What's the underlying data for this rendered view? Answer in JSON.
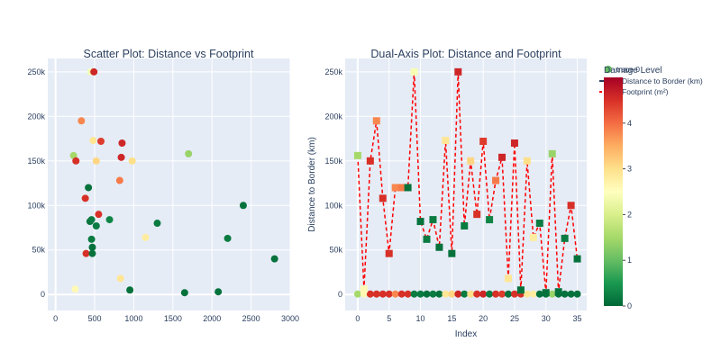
{
  "chart_data": [
    {
      "type": "scatter",
      "title": "Scatter Plot: Distance vs Footprint",
      "xlabel": "",
      "ylabel": "",
      "xlim": [
        -100,
        3000
      ],
      "ylim": [
        -18000,
        265000
      ],
      "x_ticks": [
        "0",
        "500",
        "1000",
        "1500",
        "2000",
        "2500",
        "3000"
      ],
      "y_ticks": [
        "0",
        "50k",
        "100k",
        "150k",
        "200k",
        "250k"
      ],
      "grid": true,
      "series": [
        {
          "points": [
            {
              "x": 230,
              "y": 156000,
              "damage": 1.5
            },
            {
              "x": 250,
              "y": 6000,
              "damage": 2.6
            },
            {
              "x": 260,
              "y": 150000,
              "damage": 4.5
            },
            {
              "x": 330,
              "y": 195000,
              "damage": 3.8
            },
            {
              "x": 380,
              "y": 108000,
              "damage": 4.5
            },
            {
              "x": 390,
              "y": 46000,
              "damage": 4.5
            },
            {
              "x": 420,
              "y": 120000,
              "damage": 0.1
            },
            {
              "x": 440,
              "y": 82000,
              "damage": 0.1
            },
            {
              "x": 450,
              "y": 250000,
              "damage": 2.4
            },
            {
              "x": 460,
              "y": 84000,
              "damage": 0.2
            },
            {
              "x": 460,
              "y": 62000,
              "damage": 0.2
            },
            {
              "x": 470,
              "y": 53000,
              "damage": 0.1
            },
            {
              "x": 470,
              "y": 46000,
              "damage": 0.1
            },
            {
              "x": 480,
              "y": 173000,
              "damage": 2.9
            },
            {
              "x": 490,
              "y": 250000,
              "damage": 4.6
            },
            {
              "x": 520,
              "y": 150000,
              "damage": 3.1
            },
            {
              "x": 520,
              "y": 77000,
              "damage": 0.2
            },
            {
              "x": 550,
              "y": 90000,
              "damage": 4.5
            },
            {
              "x": 580,
              "y": 172000,
              "damage": 4.4
            },
            {
              "x": 690,
              "y": 84000,
              "damage": 0.3
            },
            {
              "x": 820,
              "y": 128000,
              "damage": 3.9
            },
            {
              "x": 830,
              "y": 18000,
              "damage": 2.9
            },
            {
              "x": 840,
              "y": 154000,
              "damage": 4.6
            },
            {
              "x": 850,
              "y": 170000,
              "damage": 4.6
            },
            {
              "x": 950,
              "y": 5000,
              "damage": 0.1
            },
            {
              "x": 980,
              "y": 150000,
              "damage": 3.0
            },
            {
              "x": 1150,
              "y": 64000,
              "damage": 2.8
            },
            {
              "x": 1300,
              "y": 80000,
              "damage": 0.2
            },
            {
              "x": 1650,
              "y": 2000,
              "damage": 0.1
            },
            {
              "x": 1700,
              "y": 158000,
              "damage": 1.4
            },
            {
              "x": 2080,
              "y": 3000,
              "damage": 0.1
            },
            {
              "x": 2200,
              "y": 63000,
              "damage": 0.2
            },
            {
              "x": 2400,
              "y": 100000,
              "damage": 0.1
            },
            {
              "x": 2800,
              "y": 40000,
              "damage": 0.1
            }
          ]
        }
      ]
    },
    {
      "type": "line",
      "title": "Dual-Axis Plot: Distance and Footprint",
      "xlabel": "Index",
      "ylabel": "Distance to Border (km)",
      "xlim": [
        -2,
        36.5
      ],
      "ylim": [
        -18000,
        265000
      ],
      "x_ticks": [
        "0",
        "5",
        "10",
        "15",
        "20",
        "25",
        "30",
        "35"
      ],
      "y_ticks": [
        "0",
        "50k",
        "100k",
        "150k",
        "200k",
        "250k"
      ],
      "grid": true,
      "legend_position": "top-right",
      "series": [
        {
          "name": "Distance to Border (km)",
          "marker": "circle",
          "x": [
            0,
            1,
            2,
            3,
            4,
            5,
            6,
            7,
            8,
            9,
            10,
            11,
            12,
            13,
            14,
            15,
            16,
            17,
            18,
            19,
            20,
            21,
            22,
            23,
            24,
            25,
            26,
            27,
            28,
            29,
            30,
            31,
            32,
            33,
            34,
            35
          ],
          "y": [
            500,
            500,
            500,
            500,
            500,
            500,
            500,
            500,
            500,
            500,
            500,
            500,
            500,
            500,
            500,
            500,
            500,
            500,
            500,
            500,
            500,
            500,
            500,
            500,
            500,
            500,
            500,
            500,
            500,
            500,
            500,
            500,
            500,
            500,
            500,
            500
          ],
          "damage": [
            1.5,
            2.6,
            4.5,
            4.5,
            4.5,
            4.5,
            3.8,
            4.5,
            4.5,
            0.2,
            0.2,
            0.1,
            0.2,
            0.1,
            2.9,
            3.1,
            4.6,
            0.2,
            3.0,
            4.5,
            4.6,
            0.2,
            4.5,
            4.4,
            0.1,
            4.5,
            4.5,
            2.9,
            2.8,
            0.1,
            0.1,
            1.4,
            0.1,
            0.1,
            0.1,
            0.1
          ]
        },
        {
          "name": "Footprint (m²)",
          "marker": "square",
          "line_color": "#ff0000",
          "line_style": "dashed",
          "x": [
            0,
            1,
            2,
            3,
            4,
            5,
            6,
            7,
            8,
            9,
            10,
            11,
            12,
            13,
            14,
            15,
            16,
            17,
            18,
            19,
            20,
            21,
            22,
            23,
            24,
            25,
            26,
            27,
            28,
            29,
            30,
            31,
            32,
            33,
            34,
            35
          ],
          "y": [
            156000,
            6000,
            150000,
            195000,
            108000,
            46000,
            120000,
            120000,
            120000,
            250000,
            82000,
            62000,
            84000,
            53000,
            173000,
            46000,
            250000,
            77000,
            150000,
            90000,
            172000,
            84000,
            128000,
            154000,
            18000,
            170000,
            5000,
            150000,
            64000,
            80000,
            2000,
            158000,
            3000,
            63000,
            100000,
            40000
          ],
          "damage": [
            1.5,
            2.6,
            4.5,
            3.8,
            4.5,
            4.5,
            3.8,
            3.9,
            0.1,
            2.4,
            0.1,
            0.2,
            0.2,
            0.1,
            2.9,
            0.1,
            4.6,
            0.2,
            3.1,
            4.5,
            4.4,
            0.3,
            3.9,
            4.6,
            2.9,
            4.6,
            0.1,
            3.0,
            2.8,
            0.2,
            0.1,
            1.4,
            0.1,
            0.2,
            4.5,
            0.1
          ]
        }
      ],
      "colorbar": {
        "title": "Damage Level",
        "ticks": [
          "0",
          "1",
          "2",
          "3",
          "4"
        ],
        "range": [
          0,
          5
        ],
        "colorscale": [
          "#006837",
          "#1a9850",
          "#66bd63",
          "#a6d96a",
          "#d9ef8b",
          "#ffffbf",
          "#fee08b",
          "#fdae61",
          "#f46d43",
          "#d73027",
          "#a50026"
        ]
      },
      "legend_extra": "trace 0"
    }
  ]
}
